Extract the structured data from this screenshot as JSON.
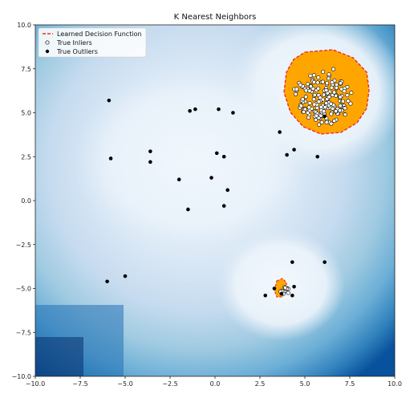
{
  "chart_data": {
    "type": "scatter",
    "title": "K Nearest Neighbors",
    "xlabel": "",
    "ylabel": "",
    "xlim": [
      -10,
      10
    ],
    "ylim": [
      -10,
      10
    ],
    "x_ticks": [
      "−10.0",
      "−7.5",
      "−5.0",
      "−2.5",
      "0.0",
      "2.5",
      "5.0",
      "7.5",
      "10.0"
    ],
    "y_ticks": [
      "−10.0",
      "−7.5",
      "−5.0",
      "−2.5",
      "0.0",
      "2.5",
      "5.0",
      "7.5",
      "10.0"
    ],
    "x_tick_values": [
      -10,
      -7.5,
      -5,
      -2.5,
      0,
      2.5,
      5,
      7.5,
      10
    ],
    "y_tick_values": [
      -10,
      -7.5,
      -5,
      -2.5,
      0,
      2.5,
      5,
      7.5,
      10
    ],
    "grid": false,
    "legend_position": "top-left",
    "legend": [
      {
        "label": "Learned Decision Function",
        "marker": "red-dashed-line"
      },
      {
        "label": "True Inliers",
        "marker": "white-circle"
      },
      {
        "label": "True Outliers",
        "marker": "black-circle"
      }
    ],
    "colors": {
      "inlier_region": "#ffa500",
      "decision_boundary": "#e8302a",
      "background_dark": "#08306b",
      "background_light": "#deebf7",
      "outlier": "#000000",
      "inlier_fill": "#ffffff"
    },
    "inlier_clusters": [
      {
        "center": [
          6.0,
          6.0
        ],
        "radius": 1.8,
        "count": 170
      },
      {
        "center": [
          3.9,
          -5.1
        ],
        "radius": 0.3,
        "count": 12
      }
    ],
    "series": [
      {
        "name": "True Outliers",
        "points": [
          [
            -5.9,
            5.7
          ],
          [
            -5.8,
            2.4
          ],
          [
            -3.6,
            2.8
          ],
          [
            -3.6,
            2.2
          ],
          [
            -1.4,
            5.1
          ],
          [
            -1.1,
            5.2
          ],
          [
            0.2,
            5.2
          ],
          [
            1.0,
            5.0
          ],
          [
            0.1,
            2.7
          ],
          [
            0.5,
            2.5
          ],
          [
            -2.0,
            1.2
          ],
          [
            -0.2,
            1.3
          ],
          [
            0.7,
            0.6
          ],
          [
            -1.5,
            -0.5
          ],
          [
            0.5,
            -0.3
          ],
          [
            3.6,
            3.9
          ],
          [
            4.0,
            2.6
          ],
          [
            4.4,
            2.9
          ],
          [
            5.7,
            2.5
          ],
          [
            6.1,
            4.8
          ],
          [
            -6.0,
            -4.6
          ],
          [
            -5.0,
            -4.3
          ],
          [
            4.3,
            -3.5
          ],
          [
            6.1,
            -3.5
          ],
          [
            2.8,
            -5.4
          ],
          [
            3.3,
            -5.0
          ],
          [
            4.4,
            -4.9
          ],
          [
            4.3,
            -5.4
          ],
          [
            3.7,
            -5.3
          ]
        ]
      }
    ]
  }
}
